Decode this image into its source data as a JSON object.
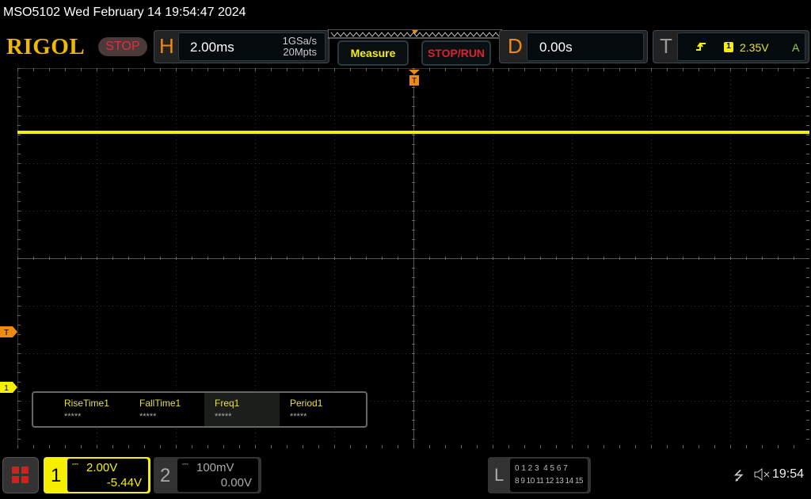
{
  "title": "MSO5102  Wed February 14 19:54:47 2024",
  "logo": "RIGOL",
  "run_state": "STOP",
  "horizontal": {
    "label": "H",
    "timebase": "2.00ms",
    "sample_rate": "1GSa/s",
    "memory_depth": "20Mpts"
  },
  "buttons": {
    "measure": "Measure",
    "stop_run": "STOP/RUN"
  },
  "delay": {
    "label": "D",
    "value": "0.00s"
  },
  "trigger": {
    "label": "T",
    "channel": "1",
    "level": "2.35V",
    "mode": "A",
    "marker": "T"
  },
  "measurements": [
    {
      "label": "RiseTime1",
      "value": "*****"
    },
    {
      "label": "FallTime1",
      "value": "*****"
    },
    {
      "label": "Freq1",
      "value": "*****"
    },
    {
      "label": "Period1",
      "value": "*****"
    }
  ],
  "channels": [
    {
      "number": "1",
      "scale": "2.00V",
      "offset": "-5.44V",
      "color": "#f5f000",
      "active": true
    },
    {
      "number": "2",
      "scale": "100mV",
      "offset": "0.00V",
      "color": "#888888",
      "active": false
    }
  ],
  "logic": {
    "label": "L",
    "row1": "0 1 2 3  4 5 6 7",
    "row2": "8 9 10 11 12 13 14 15"
  },
  "status": {
    "time": "19:54",
    "usb": "usb-icon",
    "sound": "muted"
  },
  "colors": {
    "ch1": "#f5f000",
    "accent": "#f08a10",
    "stop": "#e03040"
  }
}
